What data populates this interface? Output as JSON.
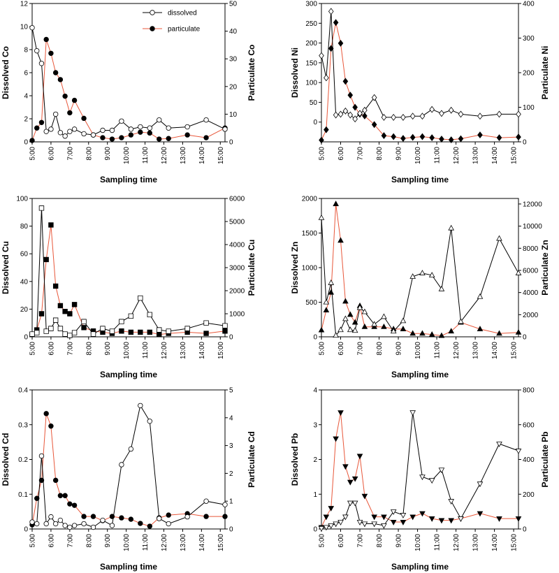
{
  "figure": {
    "xlabel": "Sampling time"
  },
  "colors": {
    "dissolved_line": "#000000",
    "particulate_line": "#e8573a",
    "axis": "#000000"
  },
  "legend": {
    "dissolved": "dissolved",
    "particulate": "particulate"
  },
  "chart_data": [
    {
      "type": "line",
      "metal": "Co",
      "marker": "circle",
      "legend": "top-right",
      "ylabel_left": "Dissolved Co",
      "ylabel_right": "Particulate Co",
      "ylim_left": [
        0,
        12
      ],
      "yticks_left": [
        0,
        2,
        4,
        6,
        8,
        10,
        12
      ],
      "ylim_right": [
        0,
        50
      ],
      "yticks_right": [
        0,
        10,
        20,
        30,
        40,
        50
      ],
      "xlim": [
        5.0,
        15.25
      ],
      "xticks": [
        5,
        6,
        7,
        8,
        9,
        10,
        11,
        12,
        13,
        14,
        15
      ],
      "xtick_labels": [
        "5:00",
        "6:00",
        "7:00",
        "8:00",
        "9:00",
        "10:00",
        "11:00",
        "12:00",
        "13:00",
        "14:00",
        "15:00"
      ],
      "series": [
        {
          "name": "dissolved",
          "axis": "left",
          "filled": false,
          "x": [
            5.0,
            5.25,
            5.5,
            5.75,
            6.0,
            6.25,
            6.5,
            6.75,
            7.0,
            7.25,
            7.75,
            8.25,
            8.75,
            9.25,
            9.75,
            10.25,
            10.75,
            11.25,
            11.75,
            12.25,
            13.25,
            14.25,
            15.25
          ],
          "y": [
            9.9,
            7.9,
            6.8,
            0.9,
            1.1,
            2.4,
            0.8,
            0.5,
            0.9,
            1.1,
            0.7,
            0.6,
            1.0,
            1.0,
            1.8,
            1.1,
            1.3,
            1.2,
            1.9,
            1.2,
            1.3,
            1.9,
            1.1
          ]
        },
        {
          "name": "particulate",
          "axis": "right",
          "filled": true,
          "x": [
            5.0,
            5.25,
            5.5,
            5.75,
            6.0,
            6.25,
            6.5,
            6.75,
            7.0,
            7.25,
            7.75,
            8.25,
            8.75,
            9.25,
            9.75,
            10.25,
            10.75,
            11.25,
            11.75,
            12.25,
            13.25,
            14.25,
            15.25
          ],
          "y": [
            0.5,
            5,
            7,
            37,
            32,
            25,
            22.5,
            16.5,
            10.5,
            15,
            8.5,
            2.5,
            1.5,
            1,
            1.5,
            2.5,
            3.5,
            3.2,
            1,
            1.2,
            2.5,
            1.5,
            5
          ]
        }
      ]
    },
    {
      "type": "line",
      "metal": "Ni",
      "marker": "diamond",
      "legend": "none",
      "ylabel_left": "Dissolved Ni",
      "ylabel_right": "Particulate Ni",
      "ylim_left": [
        -50,
        300
      ],
      "yticks_left": [
        0,
        50,
        100,
        150,
        200,
        250,
        300
      ],
      "ylim_right": [
        0,
        400
      ],
      "yticks_right": [
        0,
        100,
        200,
        300,
        400
      ],
      "xlim": [
        5.0,
        15.25
      ],
      "xticks": [
        5,
        6,
        7,
        8,
        9,
        10,
        11,
        12,
        13,
        14,
        15
      ],
      "xtick_labels": [
        "5:00",
        "6:00",
        "7:00",
        "8:00",
        "9:00",
        "10:00",
        "11:00",
        "12:00",
        "13:00",
        "14:00",
        "15:00"
      ],
      "series": [
        {
          "name": "dissolved",
          "axis": "left",
          "filled": false,
          "x": [
            5.0,
            5.25,
            5.5,
            5.75,
            6.0,
            6.25,
            6.5,
            6.75,
            7.0,
            7.25,
            7.75,
            8.25,
            8.75,
            9.25,
            9.75,
            10.25,
            10.75,
            11.25,
            11.75,
            12.25,
            13.25,
            14.25,
            15.25
          ],
          "y": [
            168,
            112,
            280,
            18,
            20,
            28,
            18,
            8,
            22,
            30,
            62,
            12,
            12,
            12,
            15,
            15,
            32,
            22,
            30,
            20,
            15,
            20,
            20
          ]
        },
        {
          "name": "particulate",
          "axis": "right",
          "filled": true,
          "x": [
            5.0,
            5.25,
            5.5,
            5.75,
            6.0,
            6.25,
            6.5,
            6.75,
            7.0,
            7.25,
            7.75,
            8.25,
            8.75,
            9.25,
            9.75,
            10.25,
            10.75,
            11.25,
            11.75,
            12.25,
            13.25,
            14.25,
            15.25
          ],
          "y": [
            5,
            35,
            270,
            345,
            285,
            175,
            135,
            100,
            80,
            75,
            50,
            18,
            15,
            10,
            13,
            15,
            12,
            8,
            6,
            9,
            20,
            12,
            14
          ]
        }
      ]
    },
    {
      "type": "line",
      "metal": "Cu",
      "marker": "square",
      "legend": "none",
      "ylabel_left": "Dissolved Cu",
      "ylabel_right": "Particulate Cu",
      "ylim_left": [
        0,
        100
      ],
      "yticks_left": [
        0,
        20,
        40,
        60,
        80,
        100
      ],
      "ylim_right": [
        0,
        6000
      ],
      "yticks_right": [
        0,
        1000,
        2000,
        3000,
        4000,
        5000,
        6000
      ],
      "xlim": [
        5.0,
        15.25
      ],
      "xticks": [
        5,
        6,
        7,
        8,
        9,
        10,
        11,
        12,
        13,
        14,
        15
      ],
      "xtick_labels": [
        "5:00",
        "6:00",
        "7:00",
        "8:00",
        "9:00",
        "10:00",
        "11:00",
        "12:00",
        "13:00",
        "14:00",
        "15:00"
      ],
      "series": [
        {
          "name": "dissolved",
          "axis": "left",
          "filled": false,
          "x": [
            5.0,
            5.25,
            5.5,
            5.75,
            6.0,
            6.25,
            6.5,
            6.75,
            7.0,
            7.25,
            7.75,
            8.25,
            8.75,
            9.25,
            9.75,
            10.25,
            10.75,
            11.25,
            11.75,
            12.25,
            13.25,
            14.25,
            15.25
          ],
          "y": [
            2,
            3,
            93,
            4,
            6,
            12,
            6,
            2,
            1,
            3,
            11,
            2,
            6,
            4,
            11,
            15,
            28,
            16,
            5,
            4,
            6,
            10,
            8
          ]
        },
        {
          "name": "particulate",
          "axis": "right",
          "filled": true,
          "x": [
            5.0,
            5.25,
            5.5,
            5.75,
            6.0,
            6.25,
            6.5,
            6.75,
            7.0,
            7.25,
            7.75,
            8.25,
            8.75,
            9.25,
            9.75,
            10.25,
            10.75,
            11.25,
            11.75,
            12.25,
            13.25,
            14.25,
            15.25
          ],
          "y": [
            100,
            300,
            1000,
            3350,
            4850,
            2200,
            1350,
            1100,
            1000,
            1400,
            400,
            250,
            200,
            150,
            250,
            200,
            200,
            200,
            100,
            150,
            200,
            150,
            250
          ]
        }
      ]
    },
    {
      "type": "line",
      "metal": "Zn",
      "marker": "triangle-up",
      "legend": "none",
      "ylabel_left": "Dissolved Zn",
      "ylabel_right": "Particulate Zn",
      "ylim_left": [
        0,
        2000
      ],
      "yticks_left": [
        0,
        500,
        1000,
        1500,
        2000
      ],
      "ylim_right": [
        0,
        12500
      ],
      "yticks_right": [
        0,
        2000,
        4000,
        6000,
        8000,
        10000,
        12000
      ],
      "xlim": [
        5.0,
        15.25
      ],
      "xticks": [
        5,
        6,
        7,
        8,
        9,
        10,
        11,
        12,
        13,
        14,
        15
      ],
      "xtick_labels": [
        "5:00",
        "6:00",
        "7:00",
        "8:00",
        "9:00",
        "10:00",
        "11:00",
        "12:00",
        "13:00",
        "14:00",
        "15:00"
      ],
      "series": [
        {
          "name": "dissolved",
          "axis": "left",
          "filled": false,
          "x": [
            5.0,
            5.25,
            5.5,
            5.75,
            6.0,
            6.25,
            6.5,
            6.75,
            7.0,
            7.25,
            7.75,
            8.25,
            8.75,
            9.25,
            9.75,
            10.25,
            10.75,
            11.25,
            11.75,
            12.25,
            13.25,
            14.25,
            15.25
          ],
          "y": [
            1720,
            500,
            780,
            20,
            100,
            260,
            100,
            90,
            420,
            360,
            180,
            290,
            80,
            230,
            870,
            920,
            890,
            690,
            1570,
            220,
            580,
            1420,
            920
          ]
        },
        {
          "name": "particulate",
          "axis": "right",
          "filled": true,
          "x": [
            5.0,
            5.25,
            5.5,
            5.75,
            6.0,
            6.25,
            6.5,
            6.75,
            7.0,
            7.25,
            7.75,
            8.25,
            8.75,
            9.25,
            9.75,
            10.25,
            10.75,
            11.25,
            11.75,
            12.25,
            13.25,
            14.25,
            15.25
          ],
          "y": [
            600,
            2400,
            4000,
            12000,
            8700,
            3200,
            2000,
            1300,
            2800,
            900,
            900,
            900,
            700,
            700,
            300,
            300,
            200,
            100,
            500,
            1300,
            700,
            300,
            400
          ]
        }
      ]
    },
    {
      "type": "line",
      "metal": "Cd",
      "marker": "circle",
      "legend": "none",
      "ylabel_left": "Dissolved Cd",
      "ylabel_right": "Particulate Cd",
      "ylim_left": [
        0,
        0.4
      ],
      "yticks_left": [
        0.0,
        0.1,
        0.2,
        0.3,
        0.4
      ],
      "ylim_right": [
        0,
        5
      ],
      "yticks_right": [
        0,
        1,
        2,
        3,
        4,
        5
      ],
      "xlim": [
        5.0,
        15.25
      ],
      "xticks": [
        5,
        6,
        7,
        8,
        9,
        10,
        11,
        12,
        13,
        14,
        15
      ],
      "xtick_labels": [
        "5:00",
        "6:00",
        "7:00",
        "8:00",
        "9:00",
        "10:00",
        "11:00",
        "12:00",
        "13:00",
        "14:00",
        "15:00"
      ],
      "series": [
        {
          "name": "dissolved",
          "axis": "left",
          "filled": false,
          "x": [
            5.0,
            5.25,
            5.5,
            5.75,
            6.0,
            6.25,
            6.5,
            6.75,
            7.0,
            7.25,
            7.75,
            8.25,
            8.75,
            9.25,
            9.75,
            10.25,
            10.75,
            11.25,
            11.75,
            12.25,
            13.25,
            14.25,
            15.25
          ],
          "y": [
            0.02,
            0.015,
            0.21,
            0.015,
            0.035,
            0.015,
            0.025,
            0.01,
            0.005,
            0.01,
            0.015,
            0.005,
            0.025,
            0.01,
            0.185,
            0.23,
            0.355,
            0.31,
            0.03,
            0.015,
            0.035,
            0.08,
            0.07
          ]
        },
        {
          "name": "particulate",
          "axis": "right",
          "filled": true,
          "x": [
            5.0,
            5.25,
            5.5,
            5.75,
            6.0,
            6.25,
            6.5,
            6.75,
            7.0,
            7.25,
            7.75,
            8.25,
            8.75,
            9.25,
            9.75,
            10.25,
            10.75,
            11.25,
            11.75,
            12.25,
            13.25,
            14.25,
            15.25
          ],
          "y": [
            0.15,
            1.1,
            1.75,
            4.15,
            3.7,
            1.75,
            1.2,
            1.2,
            0.9,
            0.85,
            0.45,
            0.45,
            0.3,
            0.45,
            0.4,
            0.35,
            0.2,
            0.1,
            0.4,
            0.5,
            0.55,
            0.45,
            0.45
          ]
        }
      ]
    },
    {
      "type": "line",
      "metal": "Pb",
      "marker": "triangle-down",
      "legend": "none",
      "ylabel_left": "Dissolved Pb",
      "ylabel_right": "Particulate Pb",
      "ylim_left": [
        0,
        4
      ],
      "yticks_left": [
        0,
        1,
        2,
        3,
        4
      ],
      "ylim_right": [
        0,
        800
      ],
      "yticks_right": [
        0,
        200,
        400,
        600,
        800
      ],
      "xlim": [
        5.0,
        15.25
      ],
      "xticks": [
        5,
        6,
        7,
        8,
        9,
        10,
        11,
        12,
        13,
        14,
        15
      ],
      "xtick_labels": [
        "5:00",
        "6:00",
        "7:00",
        "8:00",
        "9:00",
        "10:00",
        "11:00",
        "12:00",
        "13:00",
        "14:00",
        "15:00"
      ],
      "series": [
        {
          "name": "dissolved",
          "axis": "left",
          "filled": false,
          "x": [
            5.0,
            5.25,
            5.5,
            5.75,
            6.0,
            6.25,
            6.5,
            6.75,
            7.0,
            7.25,
            7.75,
            8.25,
            8.75,
            9.25,
            9.75,
            10.25,
            10.75,
            11.25,
            11.75,
            12.25,
            13.25,
            14.25,
            15.25
          ],
          "y": [
            0.02,
            0.05,
            0.1,
            0.15,
            0.2,
            0.35,
            0.75,
            0.75,
            0.2,
            0.15,
            0.15,
            0.1,
            0.5,
            0.4,
            3.35,
            1.5,
            1.4,
            1.7,
            0.8,
            0.3,
            1.3,
            2.45,
            2.25
          ]
        },
        {
          "name": "particulate",
          "axis": "right",
          "filled": true,
          "x": [
            5.0,
            5.25,
            5.5,
            5.75,
            6.0,
            6.25,
            6.5,
            6.75,
            7.0,
            7.25,
            7.75,
            8.25,
            8.75,
            9.25,
            9.75,
            10.25,
            10.75,
            11.25,
            11.75,
            12.25,
            13.25,
            14.25,
            15.25
          ],
          "y": [
            10,
            70,
            120,
            520,
            670,
            360,
            270,
            290,
            420,
            190,
            70,
            70,
            40,
            40,
            70,
            90,
            60,
            50,
            50,
            60,
            90,
            60,
            60
          ]
        }
      ]
    }
  ]
}
